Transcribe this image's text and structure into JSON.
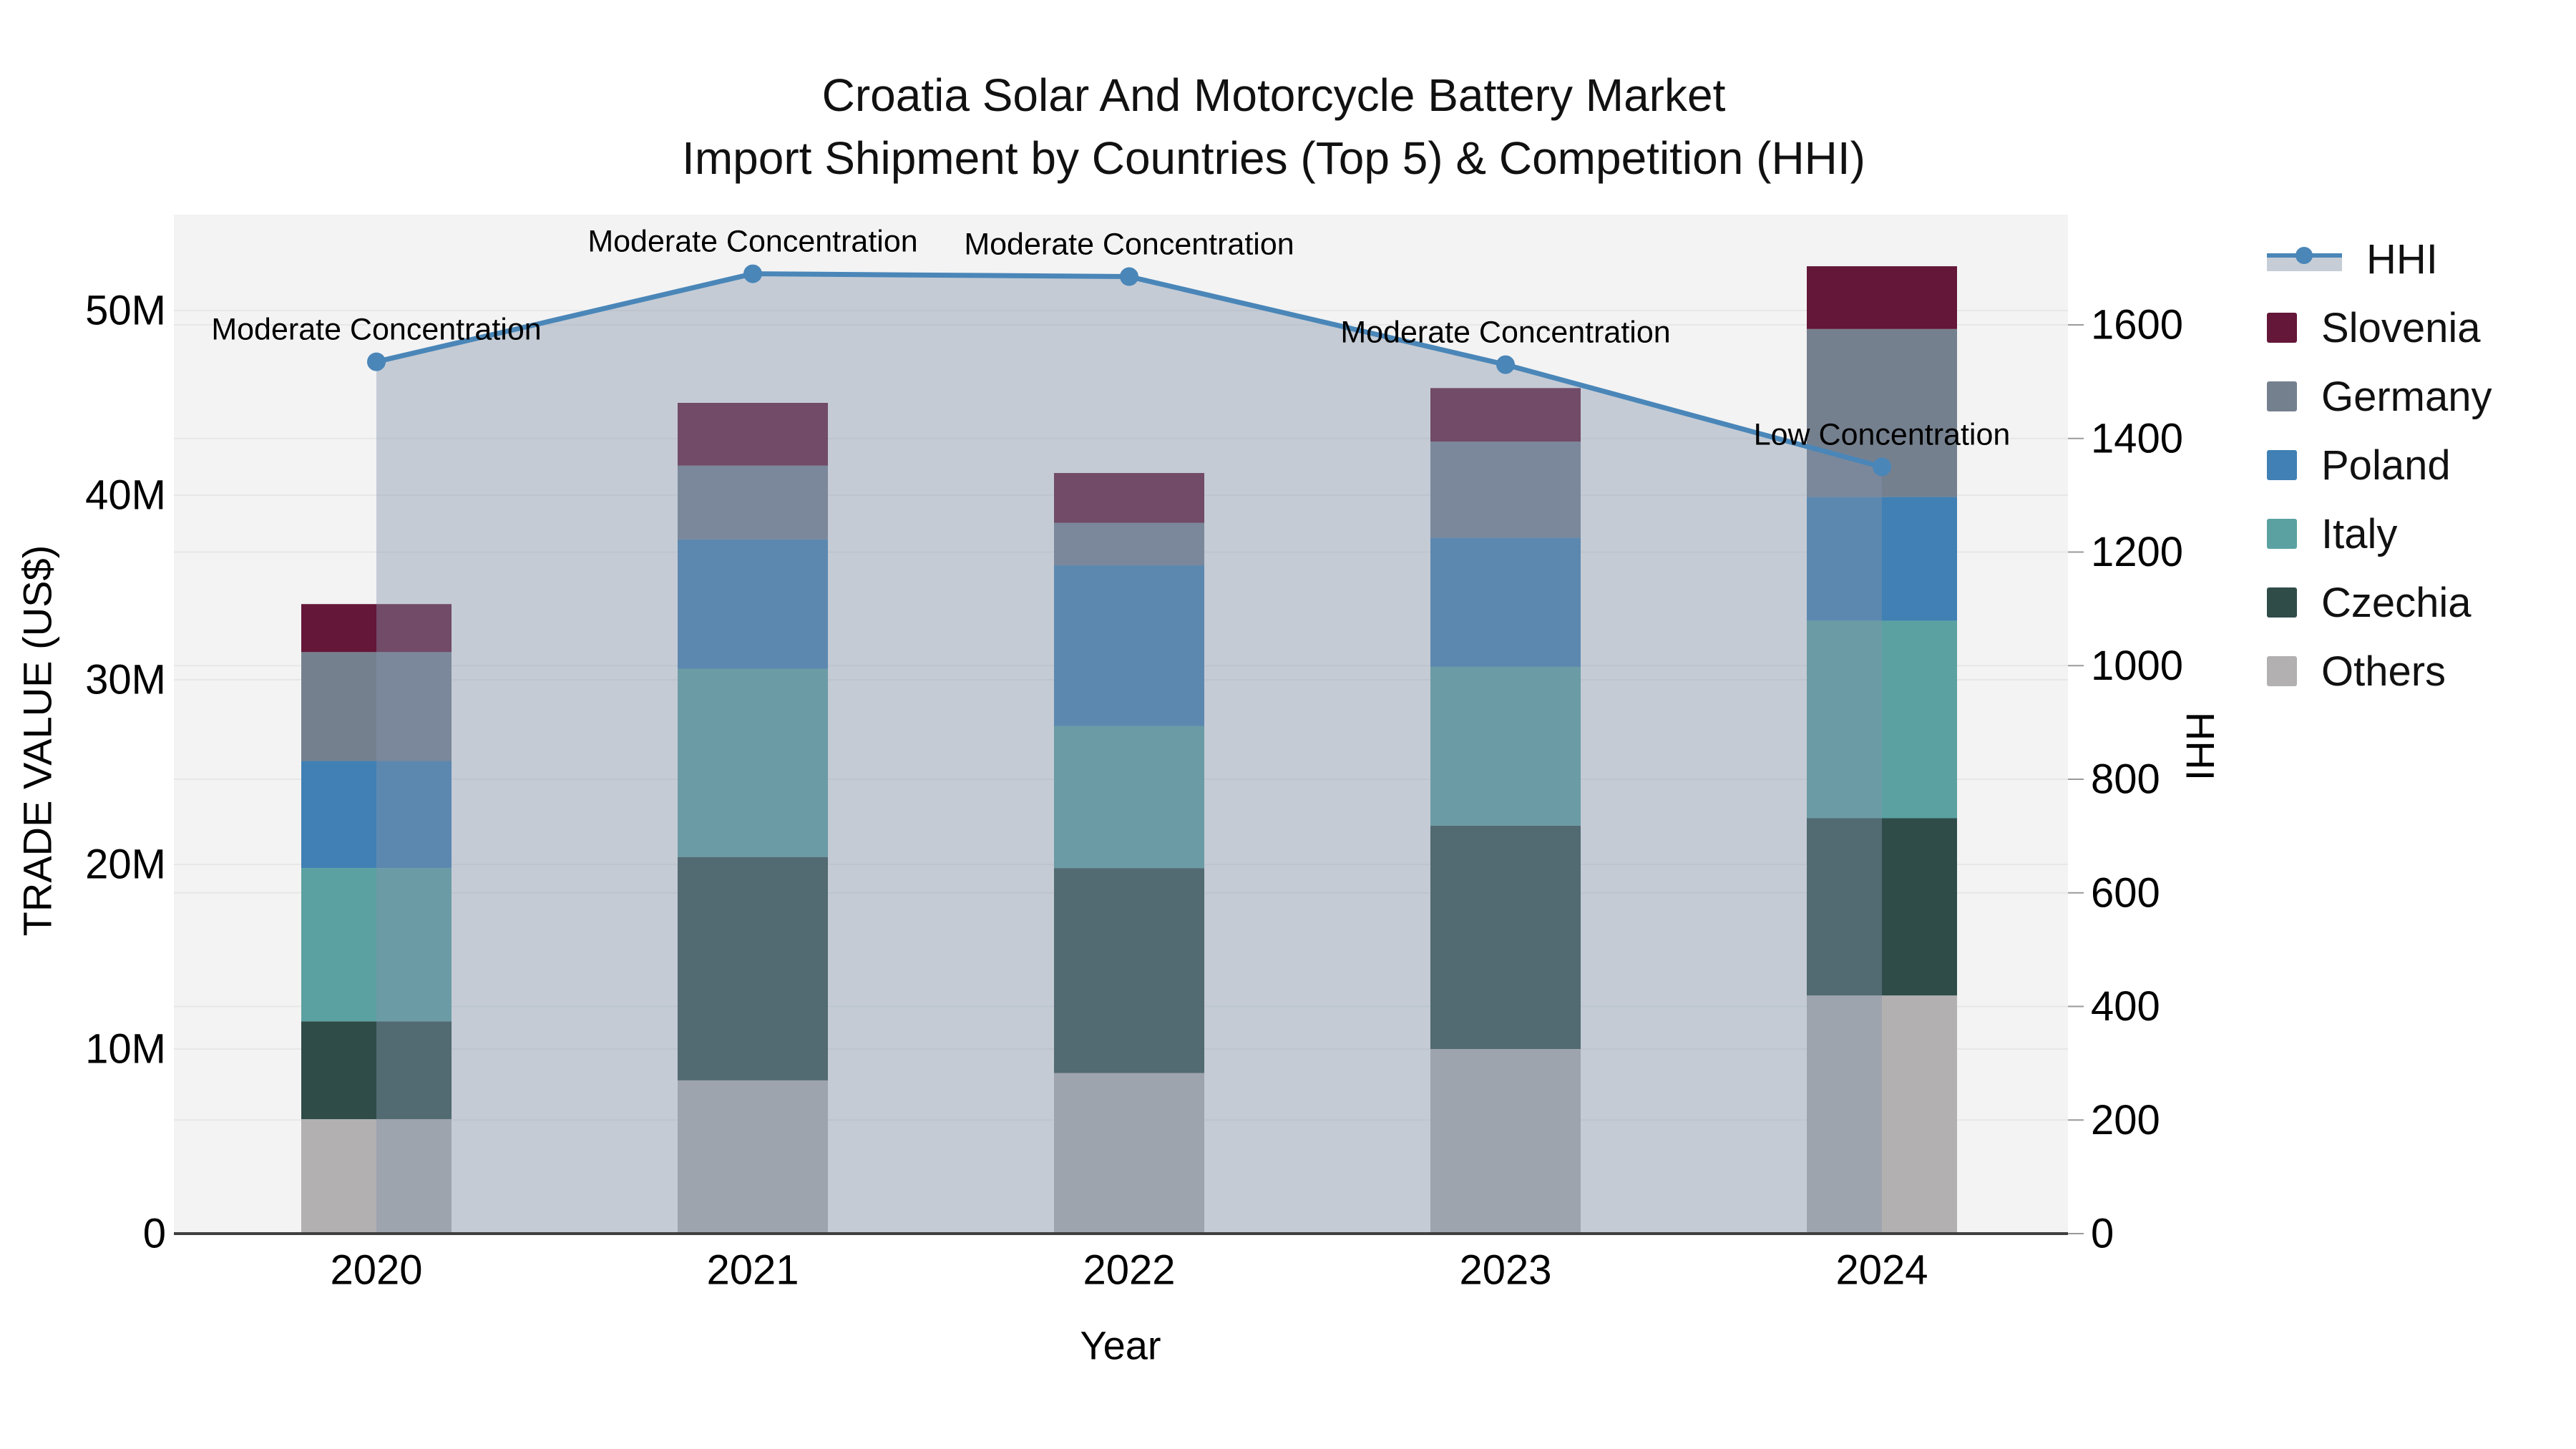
{
  "title": {
    "line1": "Croatia Solar And Motorcycle Battery Market",
    "line2": "Import Shipment by Countries (Top 5) & Competition (HHI)"
  },
  "axes": {
    "left": {
      "title": "TRADE VALUE (US$)",
      "tick_labels": [
        "0",
        "10M",
        "20M",
        "30M",
        "40M",
        "50M"
      ],
      "tick_values": [
        0,
        10,
        20,
        30,
        40,
        50
      ]
    },
    "right": {
      "title": "HHI",
      "tick_labels": [
        "0",
        "200",
        "400",
        "600",
        "800",
        "1000",
        "1200",
        "1400",
        "1600"
      ],
      "tick_values": [
        0,
        200,
        400,
        600,
        800,
        1000,
        1200,
        1400,
        1600
      ]
    },
    "x": {
      "title": "Year",
      "categories": [
        "2020",
        "2021",
        "2022",
        "2023",
        "2024"
      ]
    }
  },
  "legend": {
    "items": [
      {
        "label": "HHI",
        "type": "line",
        "color": "#4a86b8"
      },
      {
        "label": "Slovenia",
        "type": "patch",
        "color": "#641738"
      },
      {
        "label": "Germany",
        "type": "patch",
        "color": "#75808f"
      },
      {
        "label": "Poland",
        "type": "patch",
        "color": "#4080b4"
      },
      {
        "label": "Italy",
        "type": "patch",
        "color": "#5ba1a1"
      },
      {
        "label": "Czechia",
        "type": "patch",
        "color": "#2f4c49"
      },
      {
        "label": "Others",
        "type": "patch",
        "color": "#b2b0b0"
      }
    ]
  },
  "colors": {
    "hhi_line": "#4a86b8",
    "hhi_fill": "rgba(130,147,171,0.42)",
    "plot_bg": "#f3f3f3",
    "gridline": "#e7e7e7",
    "baseline": "#3f3f3f"
  },
  "chart_data": {
    "type": "bar+line",
    "unit": "trade value in millions of US$",
    "categories": [
      "2020",
      "2021",
      "2022",
      "2023",
      "2024"
    ],
    "series": [
      {
        "name": "Others",
        "color": "#b2b0b0",
        "values": [
          6.2,
          8.3,
          8.7,
          10.0,
          12.9
        ]
      },
      {
        "name": "Czechia",
        "color": "#2f4c49",
        "values": [
          5.3,
          12.1,
          11.1,
          12.1,
          9.6
        ]
      },
      {
        "name": "Italy",
        "color": "#5ba1a1",
        "values": [
          8.3,
          10.2,
          7.7,
          8.6,
          10.7
        ]
      },
      {
        "name": "Poland",
        "color": "#4080b4",
        "values": [
          5.8,
          7.0,
          8.7,
          7.0,
          6.7
        ]
      },
      {
        "name": "Germany",
        "color": "#75808f",
        "values": [
          5.9,
          4.0,
          2.3,
          5.2,
          9.1
        ]
      },
      {
        "name": "Slovenia",
        "color": "#641738",
        "values": [
          2.6,
          3.4,
          2.7,
          2.9,
          3.4
        ]
      }
    ],
    "bar_totals": [
      34.1,
      45.0,
      41.2,
      45.8,
      52.4
    ],
    "line": {
      "name": "HHI",
      "axis": "right",
      "values": [
        1535,
        1690,
        1685,
        1530,
        1350
      ],
      "point_labels": [
        "Moderate Concentration",
        "Moderate Concentration",
        "Moderate Concentration",
        "Moderate Concentration",
        "Low Concentration"
      ]
    },
    "title": "Croatia Solar And Motorcycle Battery Market — Import Shipment by Countries (Top 5) & Competition (HHI)",
    "xlabel": "Year",
    "ylabel_left": "TRADE VALUE (US$)",
    "ylabel_right": "HHI",
    "ylim_left_millions": [
      0,
      55.2
    ],
    "ylim_right": [
      0,
      1794
    ],
    "grid": true,
    "legend_position": "right"
  }
}
